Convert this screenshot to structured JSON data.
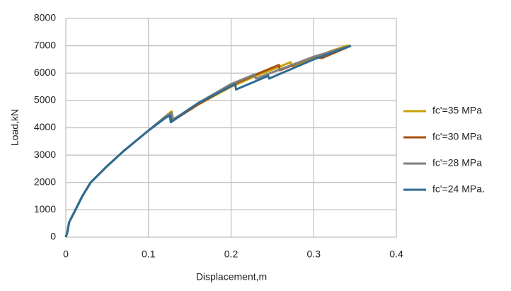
{
  "chart_data": {
    "type": "line",
    "xlabel": "Displacement,m",
    "ylabel": "Load,kN",
    "xlim": [
      0,
      0.4
    ],
    "xticks": [
      0,
      0.1,
      0.2,
      0.3,
      0.4
    ],
    "ylim": [
      0,
      8000
    ],
    "yticks": [
      0,
      1000,
      2000,
      3000,
      4000,
      5000,
      6000,
      7000,
      8000
    ],
    "grid": true,
    "legend": "right",
    "series": [
      {
        "name": "fc'=35 MPa",
        "color": "#c9a000",
        "x": [
          0,
          0.002,
          0.004,
          0.01,
          0.02,
          0.03,
          0.05,
          0.07,
          0.1,
          0.12,
          0.128,
          0.129,
          0.16,
          0.2,
          0.23,
          0.26,
          0.272,
          0.274,
          0.3,
          0.32,
          0.34,
          0.345
        ],
        "values": [
          0,
          200,
          550,
          900,
          1500,
          2000,
          2600,
          3150,
          3900,
          4400,
          4600,
          4300,
          4850,
          5500,
          5900,
          6250,
          6400,
          6250,
          6550,
          6800,
          7000,
          7000
        ]
      },
      {
        "name": "fc'=30 MPa",
        "color": "#a9500f",
        "x": [
          0,
          0.002,
          0.004,
          0.01,
          0.02,
          0.03,
          0.05,
          0.07,
          0.1,
          0.12,
          0.128,
          0.129,
          0.16,
          0.2,
          0.23,
          0.258,
          0.259,
          0.3,
          0.31,
          0.345
        ],
        "values": [
          0,
          200,
          550,
          900,
          1500,
          2000,
          2600,
          3150,
          3900,
          4400,
          4550,
          4250,
          4850,
          5550,
          5950,
          6300,
          6100,
          6600,
          6550,
          7000
        ]
      },
      {
        "name": "fc'=28 MPa",
        "color": "#808080",
        "x": [
          0,
          0.002,
          0.004,
          0.01,
          0.02,
          0.03,
          0.05,
          0.07,
          0.1,
          0.12,
          0.128,
          0.13,
          0.16,
          0.2,
          0.228,
          0.23,
          0.3,
          0.345
        ],
        "values": [
          0,
          200,
          550,
          900,
          1500,
          2000,
          2600,
          3150,
          3900,
          4400,
          4550,
          4300,
          4900,
          5600,
          5950,
          5800,
          6600,
          7000
        ]
      },
      {
        "name": "fc'=24 MPa.",
        "color": "#2e6b94",
        "x": [
          0,
          0.002,
          0.004,
          0.01,
          0.02,
          0.03,
          0.05,
          0.07,
          0.1,
          0.12,
          0.126,
          0.127,
          0.16,
          0.205,
          0.206,
          0.245,
          0.246,
          0.3,
          0.345
        ],
        "values": [
          0,
          200,
          550,
          900,
          1500,
          2000,
          2600,
          3150,
          3900,
          4350,
          4450,
          4200,
          4900,
          5600,
          5400,
          5900,
          5800,
          6500,
          7000
        ]
      }
    ]
  }
}
